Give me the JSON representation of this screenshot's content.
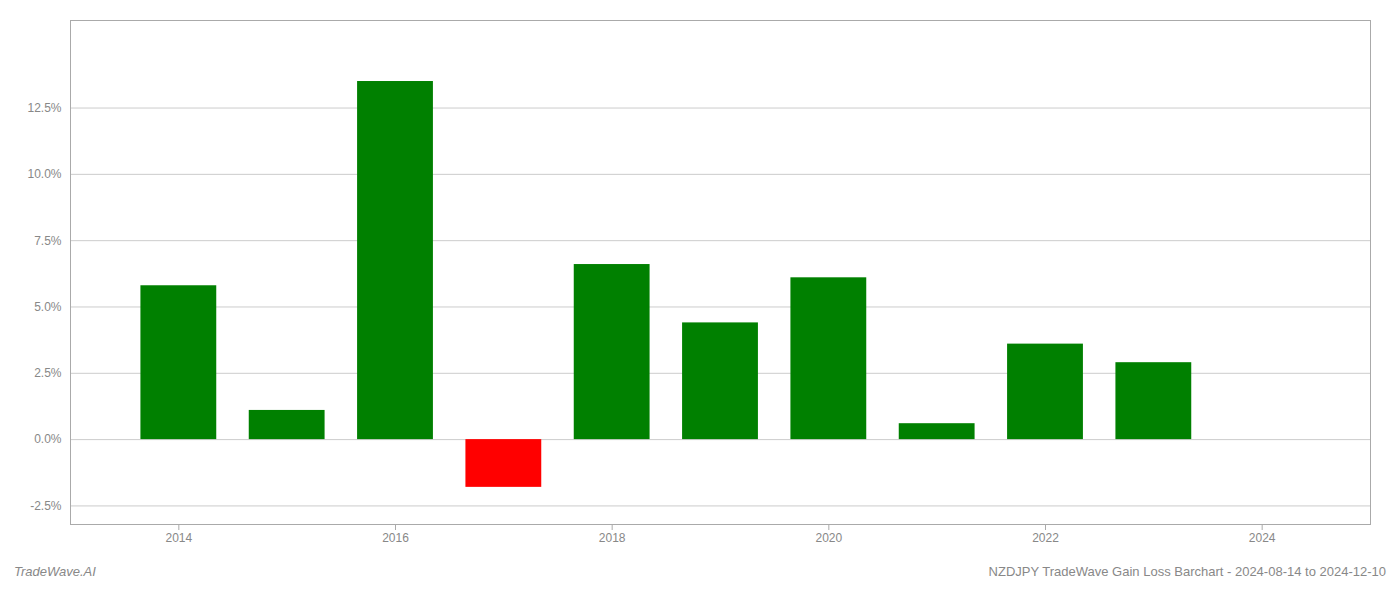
{
  "chart_data": {
    "type": "bar",
    "title": "NZDJPY TradeWave Gain Loss Barchart - 2024-08-14 to 2024-12-10",
    "annotations": [
      "TradeWave.AI"
    ],
    "x": [
      2014,
      2015,
      2016,
      2017,
      2018,
      2019,
      2020,
      2021,
      2022,
      2023
    ],
    "values": [
      0.058,
      0.011,
      0.135,
      -0.018,
      0.066,
      0.044,
      0.061,
      0.006,
      0.036,
      0.029
    ],
    "colors": [
      "#008000",
      "#008000",
      "#008000",
      "#ff0000",
      "#008000",
      "#008000",
      "#008000",
      "#008000",
      "#008000",
      "#008000"
    ],
    "xlim": [
      2013.0,
      2025.0
    ],
    "xticks": [
      2014,
      2016,
      2018,
      2020,
      2022,
      2024
    ],
    "ylim": [
      -0.032,
      0.158
    ],
    "yticks": [
      {
        "value": -0.025,
        "label": "-2.5%"
      },
      {
        "value": 0.0,
        "label": "0.0%"
      },
      {
        "value": 0.025,
        "label": "2.5%"
      },
      {
        "value": 0.05,
        "label": "5.0%"
      },
      {
        "value": 0.075,
        "label": "7.5%"
      },
      {
        "value": 0.1,
        "label": "10.0%"
      },
      {
        "value": 0.125,
        "label": "12.5%"
      }
    ],
    "grid": true
  }
}
